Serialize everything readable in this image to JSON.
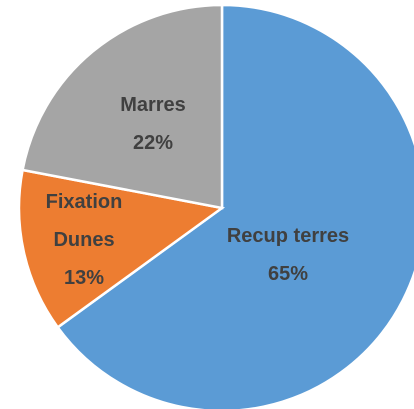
{
  "chart_data": {
    "type": "pie",
    "categories": [
      "Recup terres",
      "Fixation Dunes",
      "Marres"
    ],
    "values": [
      65,
      13,
      22
    ],
    "value_labels": [
      "65%",
      "13%",
      "22%"
    ],
    "colors": [
      "#5b9bd5",
      "#ed7d31",
      "#a5a5a5"
    ]
  }
}
